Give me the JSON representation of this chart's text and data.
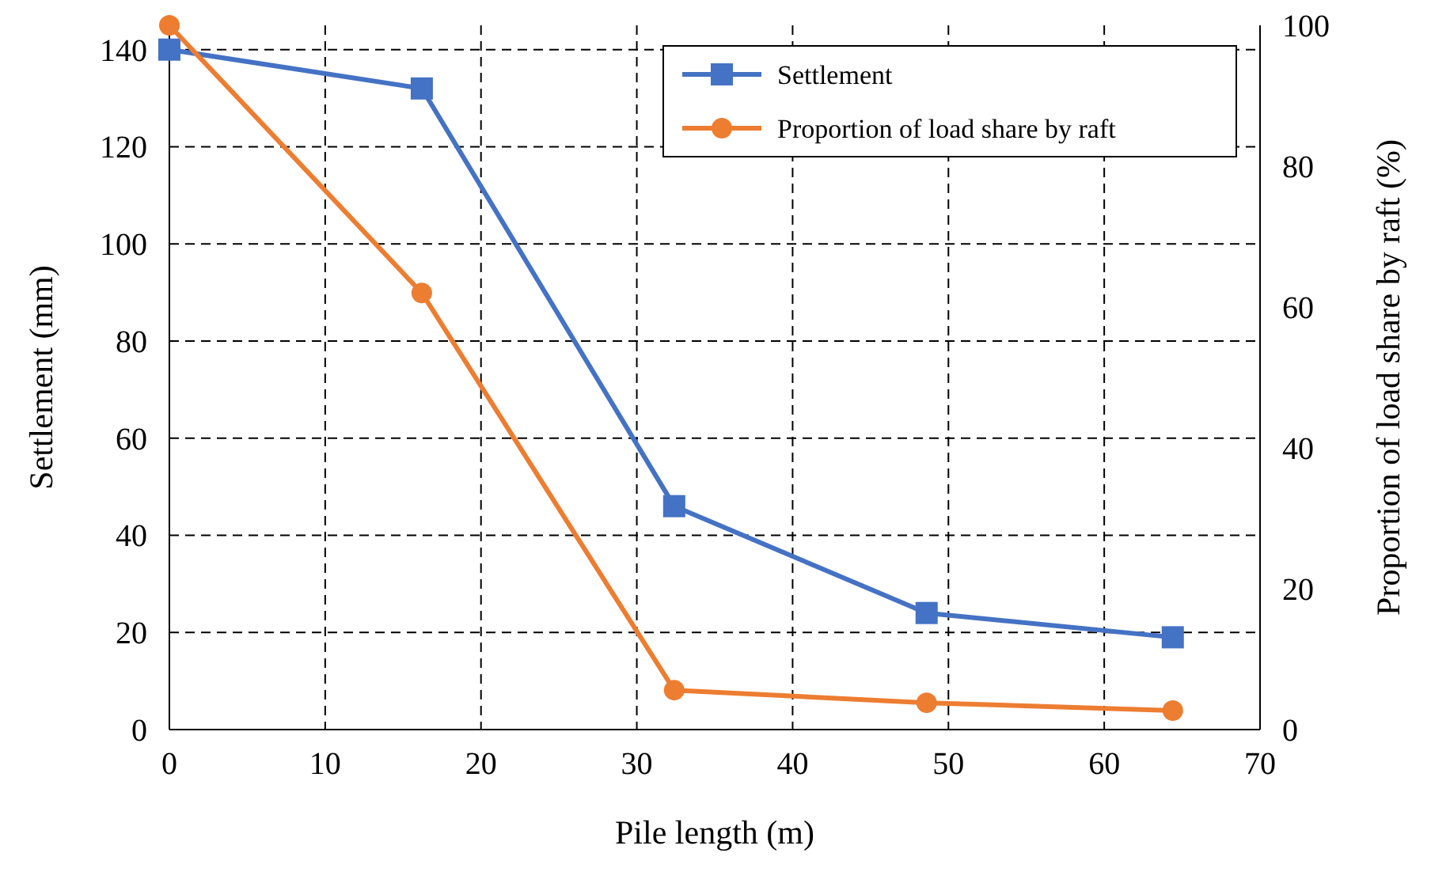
{
  "chart_data": {
    "type": "line",
    "xlabel": "Pile length (m)",
    "ylabel": "Settlement (mm)",
    "y2label": "Proportion of load share by raft (%)",
    "x": [
      0,
      16.2,
      32.4,
      48.6,
      64.4
    ],
    "series": [
      {
        "name": "Settlement",
        "color": "#4472c4",
        "marker": "square",
        "values": [
          140,
          132,
          46,
          24,
          19
        ]
      },
      {
        "name": "Proportion of load share by raft",
        "color": "#ed7d31",
        "marker": "circle",
        "axis": "y2",
        "values": [
          100,
          62,
          5.6,
          3.8,
          2.7
        ]
      }
    ],
    "xlim": [
      0,
      70
    ],
    "xticks": [
      0,
      10,
      20,
      30,
      40,
      50,
      60,
      70
    ],
    "ylim": [
      0,
      145
    ],
    "yticks": [
      0,
      20,
      40,
      60,
      80,
      100,
      120,
      140
    ],
    "y2lim": [
      0,
      100
    ],
    "y2ticks": [
      0,
      20,
      40,
      60,
      80,
      100
    ],
    "grid": true,
    "legend": "top right",
    "line_style": "solid"
  }
}
